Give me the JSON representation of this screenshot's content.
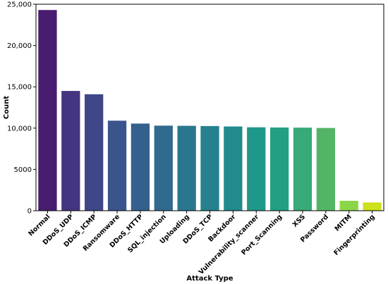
{
  "chart_data": {
    "type": "bar",
    "title": "",
    "xlabel": "Attack Type",
    "ylabel": "Count",
    "ylim": [
      0,
      25000
    ],
    "yticks": [
      0,
      5000,
      10000,
      15000,
      20000,
      25000
    ],
    "ytick_labels": [
      "0",
      "5000",
      "10,000",
      "15,000",
      "20,000",
      "25,000"
    ],
    "grid": false,
    "legend": "none",
    "palette": "viridis",
    "categories": [
      "Normal",
      "DDoS_UDP",
      "DDoS_ICMP",
      "Ransomware",
      "DDoS_HTTP",
      "SQL_injection",
      "Uploading",
      "DDoS_TCP",
      "Backdoor",
      "Vulnerability_scanner",
      "Port_Scanning",
      "XSS",
      "Password",
      "MITM",
      "Fingerprinting"
    ],
    "values": [
      24300,
      14500,
      14100,
      10900,
      10550,
      10300,
      10280,
      10250,
      10200,
      10100,
      10080,
      10060,
      10020,
      1200,
      1000
    ],
    "colors": [
      "#481d6f",
      "#453581",
      "#3f4788",
      "#3a548c",
      "#34608d",
      "#2f6b8e",
      "#2a768e",
      "#26818e",
      "#228b8d",
      "#1f978b",
      "#23a083",
      "#38aa77",
      "#53b466",
      "#8bd646",
      "#cde11d"
    ]
  }
}
